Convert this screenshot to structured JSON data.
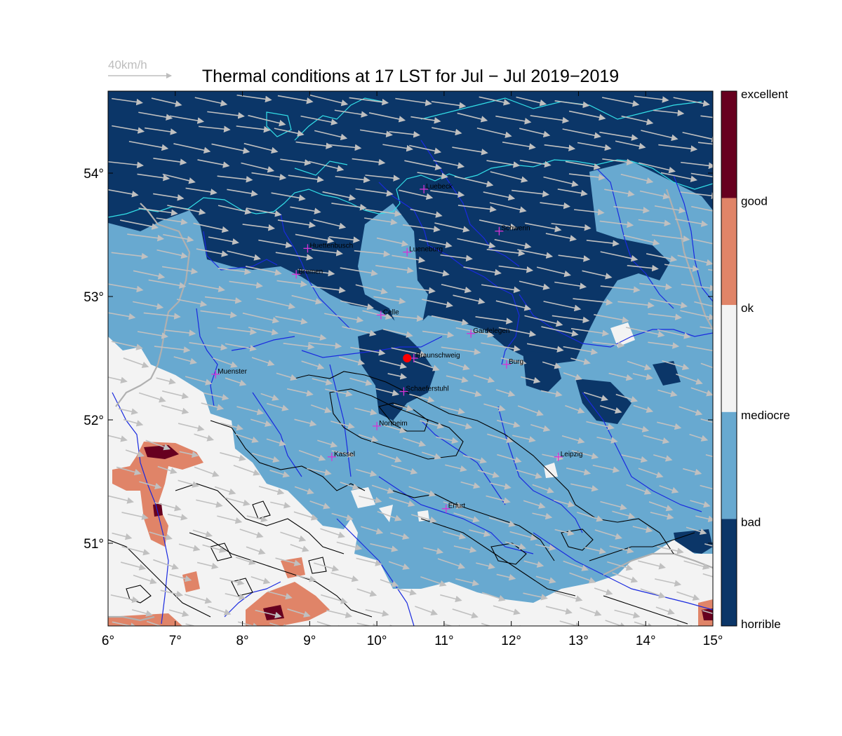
{
  "title": "Thermal conditions at 17 LST for Jul − Jul  2019−2019",
  "wind_reference": {
    "label": "40km/h",
    "color": "#bdbdbd"
  },
  "colorbar": {
    "labels": [
      "excellent",
      "good",
      "ok",
      "mediocre",
      "bad",
      "horrible"
    ],
    "colors": [
      "#67001f",
      "#e08468",
      "#f3f3f3",
      "#68a9d0",
      "#0b3668"
    ]
  },
  "map_colors": {
    "horrible": "#0b3668",
    "bad": "#68a9d0",
    "mediocre": "#f3f3f3",
    "ok": "#e08468",
    "good": "#67001f",
    "coast": "#33e0e8",
    "rivers": "#1a2adf",
    "borders": "#b0b0b0",
    "contours": "#000000",
    "wind_arrows": "#c0c0c0",
    "city_marker": "#d633d6",
    "station_marker": "#ff0000"
  },
  "lon_ticks": [
    "6°",
    "7°",
    "8°",
    "9°",
    "10°",
    "11°",
    "12°",
    "13°",
    "14°",
    "15°"
  ],
  "lat_ticks": [
    "51°",
    "52°",
    "53°",
    "54°"
  ],
  "cities": [
    {
      "name": "Luebeck",
      "lon": 10.7,
      "lat": 53.87
    },
    {
      "name": "Schwerin",
      "lon": 11.82,
      "lat": 53.53
    },
    {
      "name": "Huettenbusch",
      "lon": 8.97,
      "lat": 53.39
    },
    {
      "name": "Lueneburg",
      "lon": 10.45,
      "lat": 53.36
    },
    {
      "name": "Bremen",
      "lon": 8.8,
      "lat": 53.18
    },
    {
      "name": "Celle",
      "lon": 10.06,
      "lat": 52.85
    },
    {
      "name": "Gardelegen",
      "lon": 11.4,
      "lat": 52.7
    },
    {
      "name": "Braunschweig",
      "lon": 10.55,
      "lat": 52.5
    },
    {
      "name": "Burg",
      "lon": 11.93,
      "lat": 52.45
    },
    {
      "name": "Muenster",
      "lon": 7.6,
      "lat": 52.37
    },
    {
      "name": "Schaeferstuhl",
      "lon": 10.4,
      "lat": 52.23
    },
    {
      "name": "Northeim",
      "lon": 10.0,
      "lat": 51.95
    },
    {
      "name": "Kassel",
      "lon": 9.33,
      "lat": 51.7
    },
    {
      "name": "Leipzig",
      "lon": 12.7,
      "lat": 51.7
    },
    {
      "name": "Erfurt",
      "lon": 11.03,
      "lat": 51.28
    }
  ],
  "station": {
    "lon": 10.45,
    "lat": 52.5
  }
}
